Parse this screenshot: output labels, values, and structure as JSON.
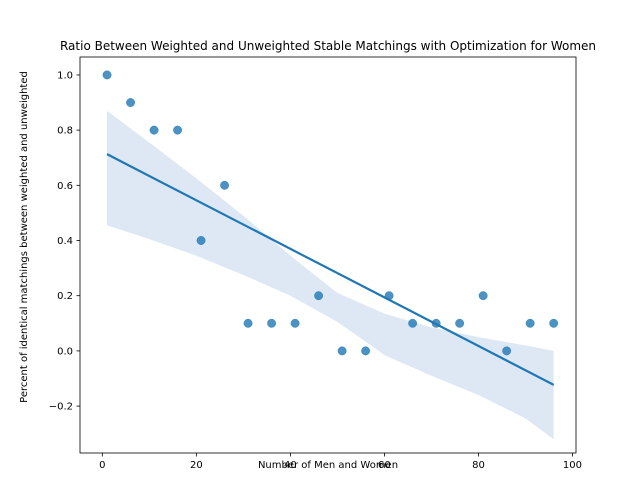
{
  "chart_data": {
    "type": "scatter",
    "title": "Ratio Between Weighted and Unweighted Stable Matchings with Optimization for Women",
    "xlabel": "Number of Men and Women",
    "ylabel": "Percent of identical matchings between weighted and unweighted",
    "xlim": [
      -4.75,
      100.75
    ],
    "ylim": [
      -0.37,
      1.065
    ],
    "xticks": [
      0,
      20,
      40,
      60,
      80,
      100
    ],
    "yticks": [
      -0.2,
      0.0,
      0.2,
      0.4,
      0.6,
      0.8,
      1.0
    ],
    "xtick_labels": [
      "0",
      "20",
      "40",
      "60",
      "80",
      "100"
    ],
    "ytick_labels": [
      "−0.2",
      "0.0",
      "0.2",
      "0.4",
      "0.6",
      "0.8",
      "1.0"
    ],
    "grid": false,
    "series": [
      {
        "x": [
          1,
          6,
          11,
          16,
          21,
          26,
          31,
          36,
          41,
          46,
          51,
          56,
          61,
          66,
          71,
          76,
          81,
          86,
          91,
          96
        ],
        "y": [
          1.0,
          0.9,
          0.8,
          0.8,
          0.4,
          0.6,
          0.1,
          0.1,
          0.1,
          0.2,
          0.0,
          0.0,
          0.2,
          0.1,
          0.1,
          0.1,
          0.2,
          0.0,
          0.1,
          0.1
        ],
        "color": "#1f77b4"
      }
    ],
    "regression": {
      "x": [
        1,
        96
      ],
      "y": [
        0.713,
        -0.123
      ],
      "ci_upper": [
        [
          1,
          0.87
        ],
        [
          10,
          0.755
        ],
        [
          20,
          0.625
        ],
        [
          30,
          0.49
        ],
        [
          40,
          0.345
        ],
        [
          50,
          0.21
        ],
        [
          60,
          0.135
        ],
        [
          70,
          0.085
        ],
        [
          80,
          0.05
        ],
        [
          90,
          0.02
        ],
        [
          96,
          0.0
        ]
      ],
      "ci_lower": [
        [
          1,
          0.455
        ],
        [
          10,
          0.405
        ],
        [
          20,
          0.345
        ],
        [
          30,
          0.275
        ],
        [
          40,
          0.2
        ],
        [
          50,
          0.105
        ],
        [
          60,
          -0.015
        ],
        [
          70,
          -0.09
        ],
        [
          80,
          -0.16
        ],
        [
          90,
          -0.245
        ],
        [
          96,
          -0.32
        ]
      ],
      "line_color": "#1f77b4",
      "band_color": "#c6d9ec"
    }
  }
}
